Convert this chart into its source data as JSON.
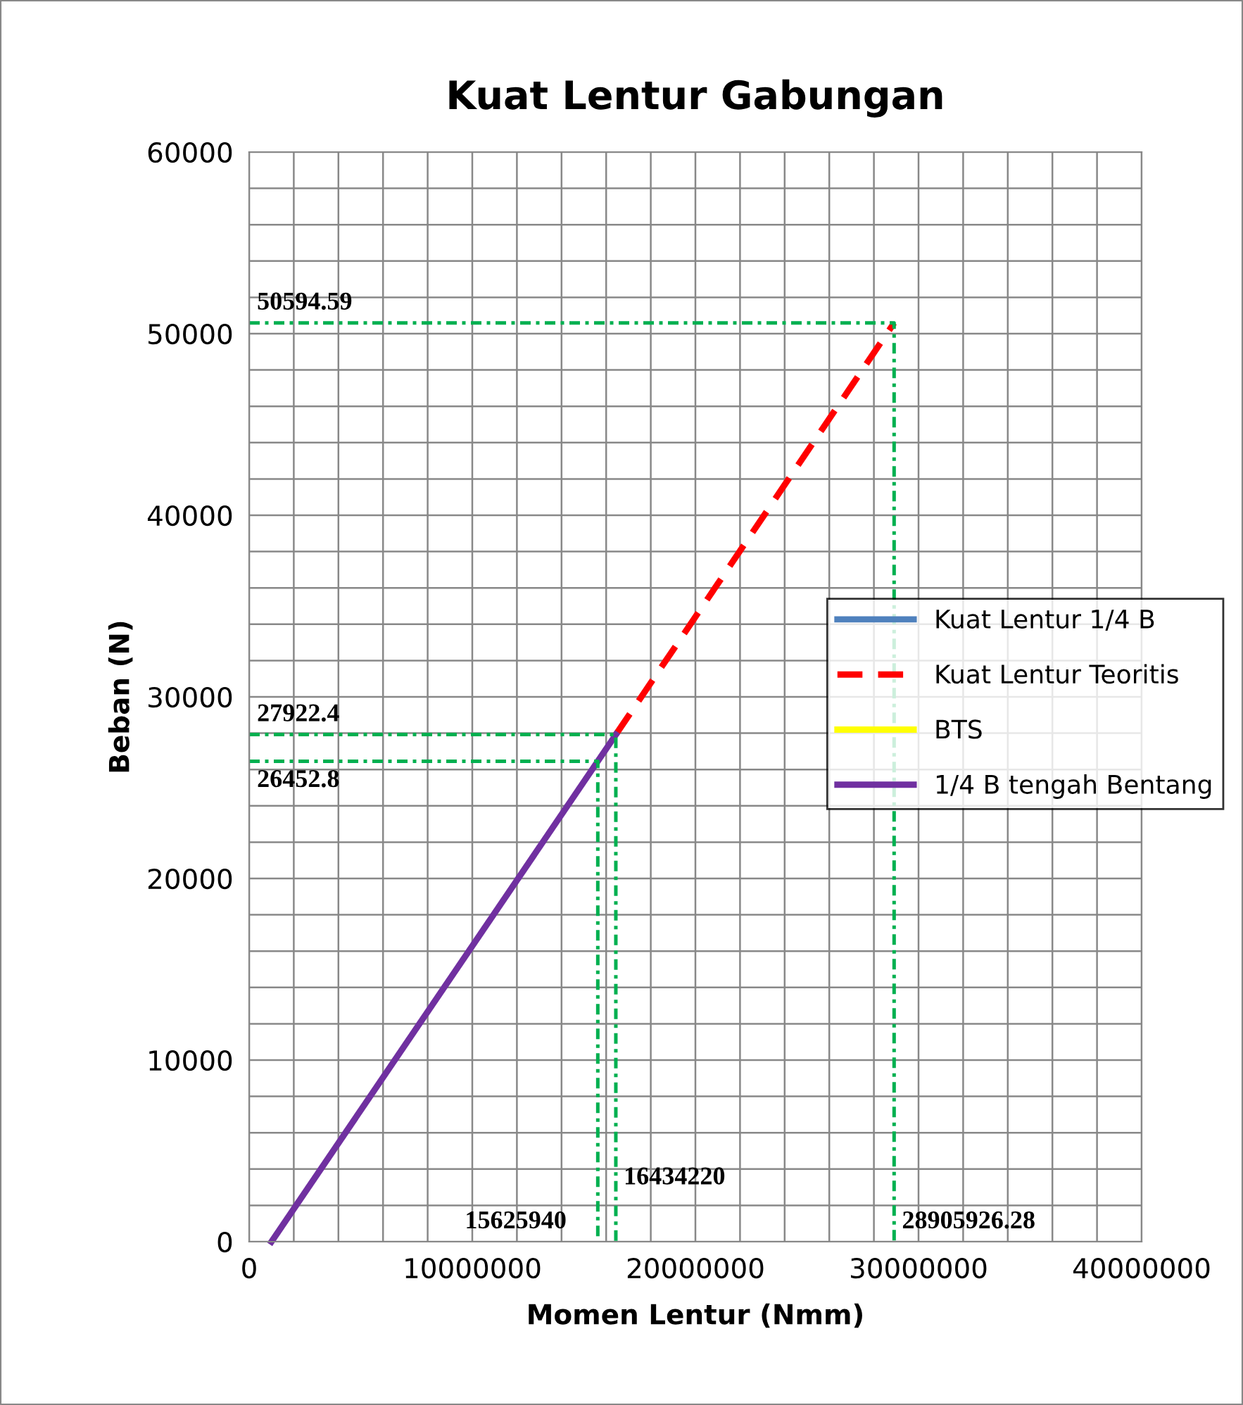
{
  "chart_data": {
    "type": "line",
    "title": "Kuat Lentur Gabungan",
    "xlabel": "Momen Lentur (Nmm)",
    "ylabel": "Beban (N)",
    "xlim": [
      0,
      40000000
    ],
    "ylim": [
      0,
      60000
    ],
    "xticks": [
      0,
      {
        "value": 2000000,
        "label": null
      },
      {
        "value": 4000000,
        "label": null
      },
      {
        "value": 6000000,
        "label": null
      },
      {
        "value": 8000000,
        "label": null
      },
      10000000,
      {
        "value": 12000000,
        "label": null
      },
      {
        "value": 14000000,
        "label": null
      },
      {
        "value": 16000000,
        "label": null
      },
      {
        "value": 18000000,
        "label": null
      },
      20000000,
      {
        "value": 22000000,
        "label": null
      },
      {
        "value": 24000000,
        "label": null
      },
      {
        "value": 26000000,
        "label": null
      },
      {
        "value": 28000000,
        "label": null
      },
      30000000,
      {
        "value": 32000000,
        "label": null
      },
      {
        "value": 34000000,
        "label": null
      },
      {
        "value": 36000000,
        "label": null
      },
      {
        "value": 38000000,
        "label": null
      },
      40000000
    ],
    "yticks": [
      0,
      {
        "value": 2000,
        "label": null
      },
      {
        "value": 4000,
        "label": null
      },
      {
        "value": 6000,
        "label": null
      },
      {
        "value": 8000,
        "label": null
      },
      10000,
      {
        "value": 12000,
        "label": null
      },
      {
        "value": 14000,
        "label": null
      },
      {
        "value": 16000,
        "label": null
      },
      {
        "value": 18000,
        "label": null
      },
      20000,
      {
        "value": 22000,
        "label": null
      },
      {
        "value": 24000,
        "label": null
      },
      {
        "value": 26000,
        "label": null
      },
      {
        "value": 28000,
        "label": null
      },
      30000,
      {
        "value": 32000,
        "label": null
      },
      {
        "value": 34000,
        "label": null
      },
      {
        "value": 36000,
        "label": null
      },
      {
        "value": 38000,
        "label": null
      },
      40000,
      {
        "value": 42000,
        "label": null
      },
      {
        "value": 44000,
        "label": null
      },
      {
        "value": 46000,
        "label": null
      },
      {
        "value": 48000,
        "label": null
      },
      50000,
      {
        "value": 52000,
        "label": null
      },
      {
        "value": 54000,
        "label": null
      },
      {
        "value": 56000,
        "label": null
      },
      {
        "value": 58000,
        "label": null
      },
      60000
    ],
    "grid": true,
    "legend": "right",
    "marker": "none",
    "series": [
      {
        "name": "Kuat Lentur 1/4 B",
        "color": "#4f81bd",
        "line_style": "solid"
      },
      {
        "name": "Kuat Lentur Teoritis",
        "color": "#ff0000",
        "x": [
          16434220,
          28905926.28
        ],
        "values": [
          27922.4,
          50594.59
        ],
        "line_style": "dashed"
      },
      {
        "name": "BTS",
        "color": "#ffff00",
        "line_style": "solid"
      },
      {
        "name": "1/4 B tengah Bentang",
        "color": "#7030a0",
        "x": [
          1000000,
          16434220
        ],
        "values": [
          0,
          27922.4
        ],
        "line_style": "solid"
      },
      {
        "color": "#00b050",
        "x": [
          0,
          28905926.28,
          28905926.28
        ],
        "values": [
          50594.59,
          50594.59,
          0
        ],
        "line_style": "dashdot"
      },
      {
        "color": "#00b050",
        "x": [
          0,
          16434220,
          16434220
        ],
        "values": [
          27922.4,
          27922.4,
          0
        ],
        "line_style": "dashdot"
      },
      {
        "color": "#00b050",
        "x": [
          0,
          15625940,
          15625940
        ],
        "values": [
          26452.8,
          26452.8,
          0
        ],
        "line_style": "dashdot"
      }
    ],
    "annotations": [
      {
        "text": "50594.59",
        "x": 0,
        "y": 50594.59
      },
      {
        "text": "27922.4",
        "x": 0,
        "y": 27922.4
      },
      {
        "text": "26452.8",
        "x": 0,
        "y": 26452.8
      },
      {
        "text": "16434220",
        "x": 16434220,
        "y": 3500
      },
      {
        "text": "15625940",
        "x": 15625940,
        "y": 0
      },
      {
        "text": "28905926.28",
        "x": 28905926.28,
        "y": 0
      }
    ]
  }
}
